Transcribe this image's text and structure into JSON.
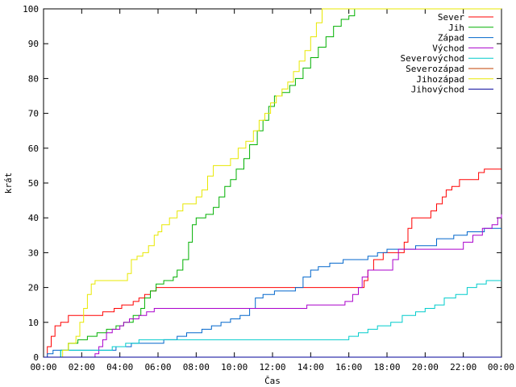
{
  "chart_data": {
    "type": "line",
    "title": "",
    "xlabel": "Čas",
    "ylabel": "krát",
    "xlim": [
      0,
      24
    ],
    "ylim": [
      0,
      100
    ],
    "grid": false,
    "legend_position": "top-right",
    "x_ticks": [
      {
        "value": 0,
        "label": "00:00"
      },
      {
        "value": 2,
        "label": "02:00"
      },
      {
        "value": 4,
        "label": "04:00"
      },
      {
        "value": 6,
        "label": "06:00"
      },
      {
        "value": 8,
        "label": "08:00"
      },
      {
        "value": 10,
        "label": "10:00"
      },
      {
        "value": 12,
        "label": "12:00"
      },
      {
        "value": 14,
        "label": "14:00"
      },
      {
        "value": 16,
        "label": "16:00"
      },
      {
        "value": 18,
        "label": "18:00"
      },
      {
        "value": 20,
        "label": "20:00"
      },
      {
        "value": 22,
        "label": "22:00"
      },
      {
        "value": 24,
        "label": "00:00"
      }
    ],
    "y_ticks": [
      0,
      10,
      20,
      30,
      40,
      50,
      60,
      70,
      80,
      90,
      100
    ],
    "series": [
      {
        "name": "Sever",
        "color": "#ff0000",
        "points": [
          [
            0,
            0
          ],
          [
            0.2,
            3
          ],
          [
            0.4,
            6
          ],
          [
            0.6,
            9
          ],
          [
            0.9,
            10
          ],
          [
            1.3,
            12
          ],
          [
            2.5,
            12
          ],
          [
            3.1,
            13
          ],
          [
            3.7,
            14
          ],
          [
            4.1,
            15
          ],
          [
            4.7,
            16
          ],
          [
            5.0,
            17
          ],
          [
            5.3,
            18
          ],
          [
            5.6,
            19
          ],
          [
            5.9,
            20
          ],
          [
            6.5,
            20
          ],
          [
            8,
            20
          ],
          [
            10,
            20
          ],
          [
            12,
            20
          ],
          [
            14,
            20
          ],
          [
            16,
            20
          ],
          [
            16.6,
            20
          ],
          [
            16.8,
            22
          ],
          [
            17.0,
            25
          ],
          [
            17.3,
            28
          ],
          [
            17.8,
            30
          ],
          [
            18.5,
            30
          ],
          [
            18.9,
            33
          ],
          [
            19.1,
            37
          ],
          [
            19.3,
            40
          ],
          [
            20.0,
            40
          ],
          [
            20.3,
            42
          ],
          [
            20.6,
            44
          ],
          [
            20.9,
            46
          ],
          [
            21.1,
            48
          ],
          [
            21.4,
            49
          ],
          [
            21.8,
            51
          ],
          [
            22.5,
            51
          ],
          [
            22.8,
            53
          ],
          [
            23.1,
            54
          ],
          [
            24,
            54
          ]
        ]
      },
      {
        "name": "Jih",
        "color": "#00b000",
        "points": [
          [
            0,
            0
          ],
          [
            0.5,
            0
          ],
          [
            0.9,
            2
          ],
          [
            1.3,
            4
          ],
          [
            1.8,
            5
          ],
          [
            2.3,
            6
          ],
          [
            2.8,
            7
          ],
          [
            3.3,
            8
          ],
          [
            3.8,
            9
          ],
          [
            4.2,
            10
          ],
          [
            4.7,
            12
          ],
          [
            5.1,
            14
          ],
          [
            5.3,
            17
          ],
          [
            5.6,
            19
          ],
          [
            5.9,
            21
          ],
          [
            6.3,
            22
          ],
          [
            6.6,
            22
          ],
          [
            6.8,
            23
          ],
          [
            7.0,
            25
          ],
          [
            7.3,
            28
          ],
          [
            7.6,
            33
          ],
          [
            7.8,
            38
          ],
          [
            8.0,
            40
          ],
          [
            8.5,
            41
          ],
          [
            8.9,
            43
          ],
          [
            9.2,
            46
          ],
          [
            9.5,
            49
          ],
          [
            9.8,
            51
          ],
          [
            10.1,
            54
          ],
          [
            10.5,
            57
          ],
          [
            10.8,
            61
          ],
          [
            11.2,
            65
          ],
          [
            11.5,
            68
          ],
          [
            11.8,
            72
          ],
          [
            12.1,
            75
          ],
          [
            12.5,
            76
          ],
          [
            12.9,
            78
          ],
          [
            13.2,
            80
          ],
          [
            13.6,
            83
          ],
          [
            14.0,
            86
          ],
          [
            14.4,
            89
          ],
          [
            14.8,
            92
          ],
          [
            15.2,
            95
          ],
          [
            15.6,
            97
          ],
          [
            16.0,
            98
          ],
          [
            16.3,
            100
          ],
          [
            24,
            100
          ]
        ]
      },
      {
        "name": "Západ",
        "color": "#0066cc",
        "points": [
          [
            0,
            0
          ],
          [
            0.2,
            1
          ],
          [
            0.5,
            2
          ],
          [
            1.5,
            2
          ],
          [
            2.3,
            2
          ],
          [
            2.8,
            2
          ],
          [
            3.4,
            2
          ],
          [
            3.8,
            3
          ],
          [
            4.1,
            3
          ],
          [
            4.6,
            4
          ],
          [
            5.3,
            4
          ],
          [
            6.3,
            5
          ],
          [
            7.0,
            6
          ],
          [
            7.5,
            7
          ],
          [
            8.3,
            8
          ],
          [
            8.8,
            9
          ],
          [
            9.3,
            10
          ],
          [
            9.8,
            11
          ],
          [
            10.3,
            12
          ],
          [
            10.8,
            14
          ],
          [
            11.1,
            17
          ],
          [
            11.5,
            18
          ],
          [
            12.1,
            19
          ],
          [
            12.6,
            19
          ],
          [
            13.2,
            20
          ],
          [
            13.6,
            23
          ],
          [
            14.0,
            25
          ],
          [
            14.4,
            26
          ],
          [
            15.0,
            27
          ],
          [
            15.7,
            28
          ],
          [
            16.5,
            28
          ],
          [
            17.0,
            29
          ],
          [
            17.5,
            30
          ],
          [
            18.0,
            31
          ],
          [
            19.2,
            31
          ],
          [
            19.5,
            32
          ],
          [
            20.2,
            32
          ],
          [
            20.6,
            34
          ],
          [
            21.5,
            35
          ],
          [
            22.2,
            36
          ],
          [
            23.1,
            37
          ],
          [
            24,
            37
          ]
        ]
      },
      {
        "name": "Východ",
        "color": "#aa00cc",
        "points": [
          [
            0,
            0
          ],
          [
            2.5,
            0
          ],
          [
            2.7,
            1
          ],
          [
            2.9,
            3
          ],
          [
            3.1,
            5
          ],
          [
            3.3,
            7
          ],
          [
            3.6,
            8
          ],
          [
            4.0,
            9
          ],
          [
            4.2,
            10
          ],
          [
            4.5,
            11
          ],
          [
            5.0,
            12
          ],
          [
            5.4,
            13
          ],
          [
            5.8,
            14
          ],
          [
            7.0,
            14
          ],
          [
            8,
            14
          ],
          [
            10,
            14
          ],
          [
            12,
            14
          ],
          [
            13,
            14
          ],
          [
            13.8,
            15
          ],
          [
            15,
            15
          ],
          [
            15.8,
            16
          ],
          [
            16.2,
            18
          ],
          [
            16.5,
            20
          ],
          [
            16.7,
            23
          ],
          [
            17.0,
            25
          ],
          [
            18,
            25
          ],
          [
            18.3,
            28
          ],
          [
            18.6,
            31
          ],
          [
            19.5,
            31
          ],
          [
            21.5,
            31
          ],
          [
            22.0,
            33
          ],
          [
            22.5,
            35
          ],
          [
            23.0,
            37
          ],
          [
            23.5,
            38
          ],
          [
            23.8,
            40
          ],
          [
            24,
            41
          ]
        ]
      },
      {
        "name": "Severovýchod",
        "color": "#00cccc",
        "points": [
          [
            0,
            0
          ],
          [
            0.8,
            0
          ],
          [
            0.9,
            2
          ],
          [
            1.5,
            2
          ],
          [
            2.6,
            2
          ],
          [
            3.6,
            3
          ],
          [
            4.3,
            4
          ],
          [
            5.0,
            5
          ],
          [
            6,
            5
          ],
          [
            8,
            5
          ],
          [
            10,
            5
          ],
          [
            12,
            5
          ],
          [
            14,
            5
          ],
          [
            15,
            5
          ],
          [
            16.0,
            6
          ],
          [
            16.5,
            7
          ],
          [
            17.0,
            8
          ],
          [
            17.5,
            9
          ],
          [
            18.2,
            10
          ],
          [
            18.8,
            12
          ],
          [
            19.5,
            13
          ],
          [
            20.0,
            14
          ],
          [
            20.5,
            15
          ],
          [
            21.0,
            17
          ],
          [
            21.6,
            18
          ],
          [
            22.2,
            20
          ],
          [
            22.7,
            21
          ],
          [
            23.2,
            22
          ],
          [
            24,
            22
          ]
        ]
      },
      {
        "name": "Severozápad",
        "color": "#c04000",
        "points": [
          [
            0,
            0
          ],
          [
            24,
            0
          ]
        ]
      },
      {
        "name": "Jihozápad",
        "color": "#e8e800",
        "points": [
          [
            0,
            0
          ],
          [
            0.8,
            0
          ],
          [
            1.0,
            2
          ],
          [
            1.3,
            4
          ],
          [
            1.7,
            6
          ],
          [
            1.9,
            10
          ],
          [
            2.1,
            14
          ],
          [
            2.3,
            18
          ],
          [
            2.5,
            21
          ],
          [
            2.7,
            22
          ],
          [
            3.5,
            22
          ],
          [
            4.0,
            22
          ],
          [
            4.4,
            24
          ],
          [
            4.6,
            28
          ],
          [
            4.9,
            29
          ],
          [
            5.2,
            30
          ],
          [
            5.5,
            32
          ],
          [
            5.8,
            35
          ],
          [
            6.0,
            36
          ],
          [
            6.2,
            38
          ],
          [
            6.6,
            40
          ],
          [
            7.0,
            42
          ],
          [
            7.3,
            44
          ],
          [
            7.8,
            44
          ],
          [
            8.0,
            46
          ],
          [
            8.3,
            48
          ],
          [
            8.6,
            52
          ],
          [
            8.9,
            55
          ],
          [
            9.3,
            55
          ],
          [
            9.8,
            57
          ],
          [
            10.2,
            60
          ],
          [
            10.6,
            62
          ],
          [
            11.0,
            65
          ],
          [
            11.3,
            68
          ],
          [
            11.6,
            70
          ],
          [
            11.9,
            73
          ],
          [
            12.2,
            75
          ],
          [
            12.5,
            77
          ],
          [
            12.8,
            79
          ],
          [
            13.1,
            82
          ],
          [
            13.4,
            85
          ],
          [
            13.7,
            88
          ],
          [
            14.0,
            92
          ],
          [
            14.3,
            96
          ],
          [
            14.6,
            100
          ],
          [
            24,
            100
          ]
        ]
      },
      {
        "name": "Jihovýchod",
        "color": "#000099",
        "points": [
          [
            0,
            0
          ],
          [
            24,
            0
          ]
        ]
      }
    ]
  }
}
